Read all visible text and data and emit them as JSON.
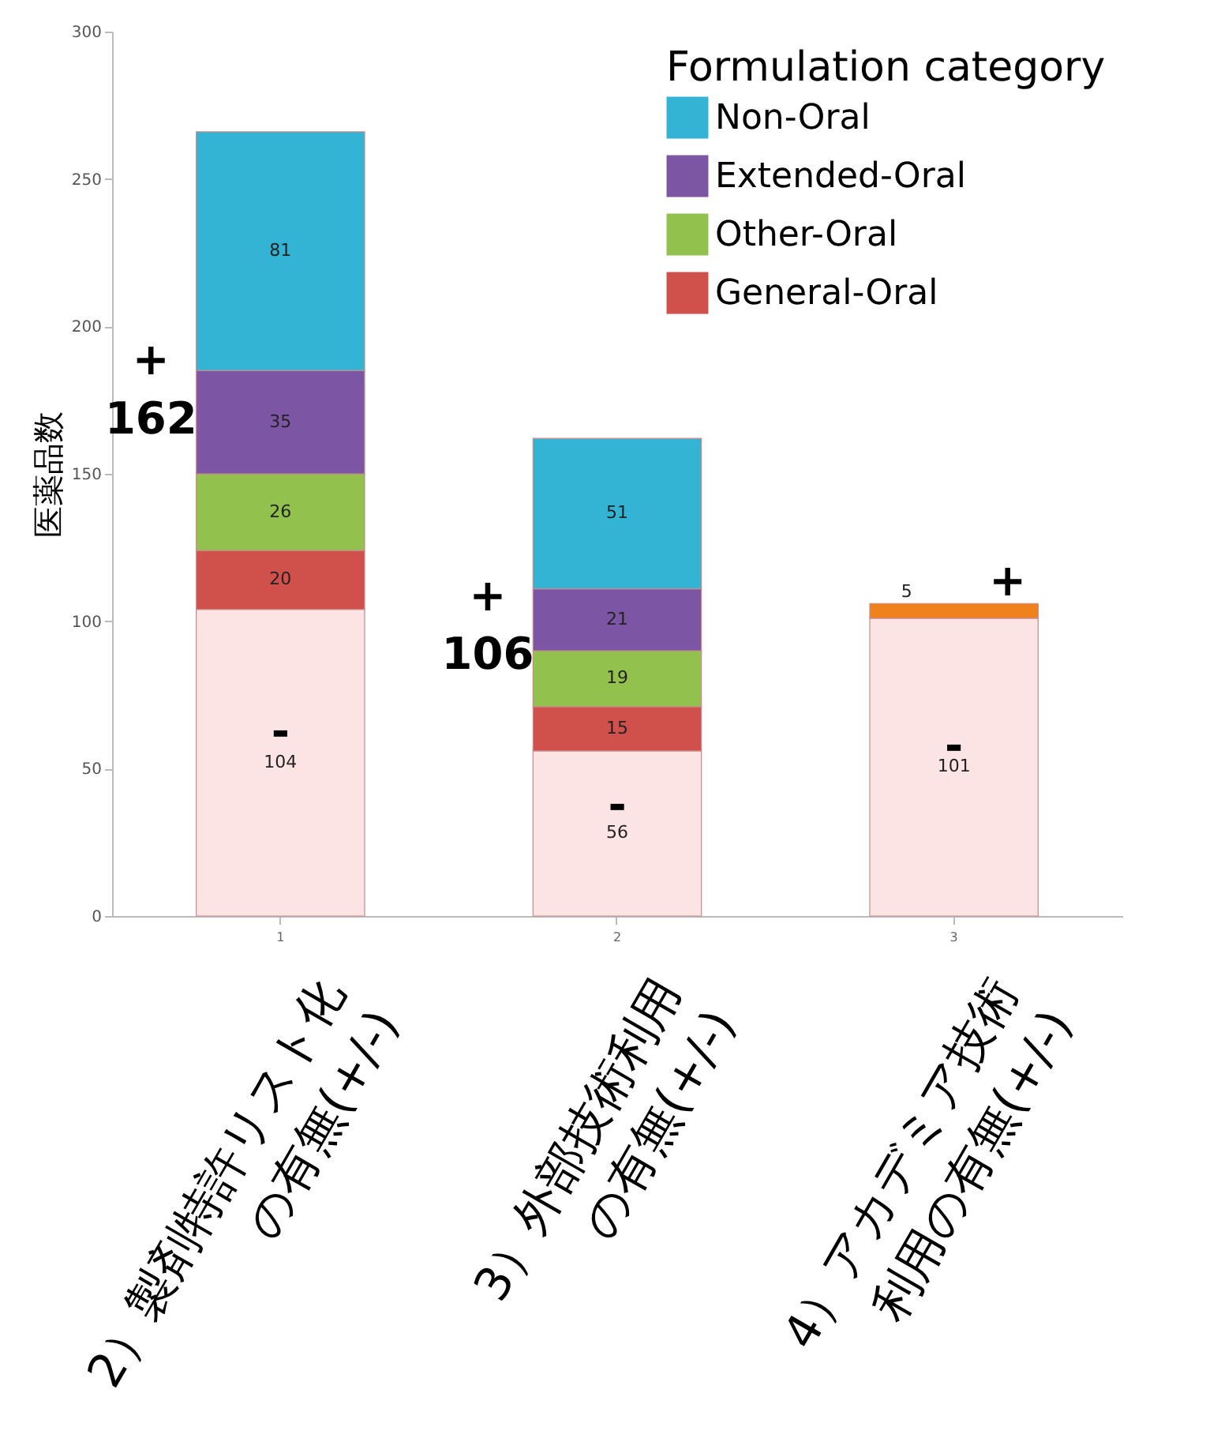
{
  "chart_data": {
    "type": "bar",
    "stacked": true,
    "ylabel": "医薬品数",
    "legend_title": "Formulation category",
    "legend": "top right",
    "grid": false,
    "data_labels": true,
    "categories": [
      "2）製剤特許リスト化\nの有無(+/-)",
      "3）外部技術利用\nの有無(+/-)",
      "4）アカデミア技術\n利用の有無(+/-)"
    ],
    "ylim": [
      0,
      300
    ],
    "yticks": [
      0,
      50,
      100,
      150,
      200,
      250,
      300
    ],
    "series": [
      {
        "color": "#fde4e4",
        "values": [
          104,
          56,
          101
        ]
      },
      {
        "name": "General-Oral",
        "color": "#d0504c",
        "values": [
          20,
          15,
          null
        ]
      },
      {
        "name": "Other-Oral",
        "color": "#92c14e",
        "values": [
          26,
          19,
          null
        ]
      },
      {
        "name": "Extended-Oral",
        "color": "#7c56a5",
        "values": [
          35,
          21,
          null
        ]
      },
      {
        "name": "Non-Oral",
        "color": "#33b4d4",
        "values": [
          81,
          51,
          null
        ]
      },
      {
        "color": "#f0821e",
        "values": [
          null,
          null,
          5
        ]
      }
    ],
    "annotations": [
      "+",
      "162",
      "-",
      "+",
      "106",
      "-",
      "+",
      "-",
      "1",
      "2",
      "3"
    ]
  }
}
